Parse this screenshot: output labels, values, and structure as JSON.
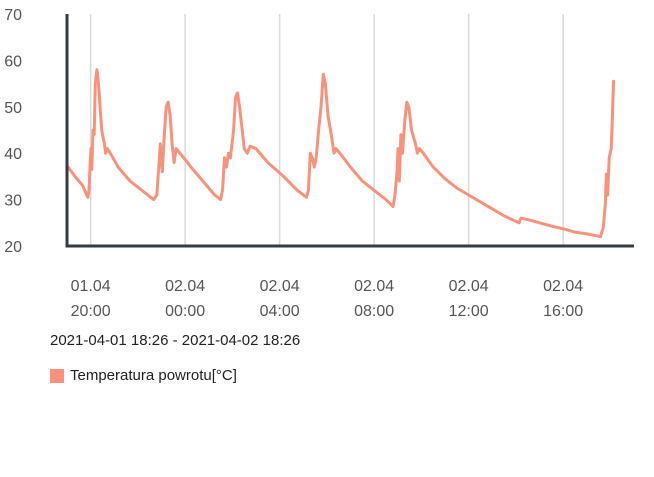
{
  "chart_data": {
    "type": "line",
    "title": "",
    "xlabel": "",
    "ylabel": "",
    "ylim": [
      20,
      70
    ],
    "y_ticks": [
      20,
      30,
      40,
      50,
      60,
      70
    ],
    "x_range": [
      "2021-04-01 19:00",
      "2021-04-02 19:00"
    ],
    "x_ticks": [
      {
        "time": "2021-04-01 20:00",
        "date": "01.04",
        "hour": "20:00"
      },
      {
        "time": "2021-04-02 00:00",
        "date": "02.04",
        "hour": "00:00"
      },
      {
        "time": "2021-04-02 04:00",
        "date": "02.04",
        "hour": "04:00"
      },
      {
        "time": "2021-04-02 08:00",
        "date": "02.04",
        "hour": "08:00"
      },
      {
        "time": "2021-04-02 12:00",
        "date": "02.04",
        "hour": "12:00"
      },
      {
        "time": "2021-04-02 16:00",
        "date": "02.04",
        "hour": "16:00"
      }
    ],
    "grid": "vertical",
    "legend_position": "bottom-left",
    "date_range_label": "2021-04-01 18:26 - 2021-04-02 18:26",
    "series": [
      {
        "name": "Temperatura powrotu[°C]",
        "color": "#f9927c",
        "points": [
          [
            "2021-04-01 19:03",
            37.0
          ],
          [
            "2021-04-01 19:20",
            35.0
          ],
          [
            "2021-04-01 19:40",
            33.0
          ],
          [
            "2021-04-01 19:50",
            31.0
          ],
          [
            "2021-04-01 19:53",
            30.5
          ],
          [
            "2021-04-01 19:56",
            32.0
          ],
          [
            "2021-04-01 19:59",
            38.0
          ],
          [
            "2021-04-01 20:01",
            41.0
          ],
          [
            "2021-04-01 20:03",
            36.5
          ],
          [
            "2021-04-01 20:06",
            45.0
          ],
          [
            "2021-04-01 20:09",
            44.0
          ],
          [
            "2021-04-01 20:12",
            55.0
          ],
          [
            "2021-04-01 20:16",
            58.0
          ],
          [
            "2021-04-01 20:20",
            55.0
          ],
          [
            "2021-04-01 20:28",
            45.0
          ],
          [
            "2021-04-01 20:35",
            42.0
          ],
          [
            "2021-04-01 20:38",
            40.0
          ],
          [
            "2021-04-01 20:42",
            41.0
          ],
          [
            "2021-04-01 20:50",
            40.0
          ],
          [
            "2021-04-01 21:10",
            37.0
          ],
          [
            "2021-04-01 21:40",
            34.0
          ],
          [
            "2021-04-01 22:10",
            32.0
          ],
          [
            "2021-04-01 22:40",
            30.0
          ],
          [
            "2021-04-01 22:48",
            31.0
          ],
          [
            "2021-04-01 22:54",
            38.0
          ],
          [
            "2021-04-01 22:57",
            42.0
          ],
          [
            "2021-04-01 23:02",
            36.0
          ],
          [
            "2021-04-01 23:07",
            44.0
          ],
          [
            "2021-04-01 23:12",
            50.0
          ],
          [
            "2021-04-01 23:17",
            51.0
          ],
          [
            "2021-04-01 23:22",
            48.0
          ],
          [
            "2021-04-01 23:27",
            42.0
          ],
          [
            "2021-04-01 23:32",
            38.0
          ],
          [
            "2021-04-01 23:37",
            41.0
          ],
          [
            "2021-04-01 23:47",
            40.0
          ],
          [
            "2021-04-02 00:15",
            37.0
          ],
          [
            "2021-04-02 00:45",
            34.0
          ],
          [
            "2021-04-02 01:15",
            31.0
          ],
          [
            "2021-04-02 01:30",
            30.0
          ],
          [
            "2021-04-02 01:35",
            32.0
          ],
          [
            "2021-04-02 01:40",
            39.0
          ],
          [
            "2021-04-02 01:45",
            37.0
          ],
          [
            "2021-04-02 01:50",
            40.0
          ],
          [
            "2021-04-02 01:55",
            39.0
          ],
          [
            "2021-04-02 02:03",
            45.0
          ],
          [
            "2021-04-02 02:08",
            52.0
          ],
          [
            "2021-04-02 02:13",
            53.0
          ],
          [
            "2021-04-02 02:18",
            50.0
          ],
          [
            "2021-04-02 02:25",
            45.0
          ],
          [
            "2021-04-02 02:30",
            41.0
          ],
          [
            "2021-04-02 02:38",
            40.0
          ],
          [
            "2021-04-02 02:45",
            41.5
          ],
          [
            "2021-04-02 03:00",
            41.0
          ],
          [
            "2021-04-02 03:30",
            38.0
          ],
          [
            "2021-04-02 04:10",
            35.0
          ],
          [
            "2021-04-02 04:45",
            32.0
          ],
          [
            "2021-04-02 05:08",
            30.5
          ],
          [
            "2021-04-02 05:13",
            32.0
          ],
          [
            "2021-04-02 05:18",
            40.0
          ],
          [
            "2021-04-02 05:23",
            39.0
          ],
          [
            "2021-04-02 05:28",
            37.0
          ],
          [
            "2021-04-02 05:33",
            39.0
          ],
          [
            "2021-04-02 05:38",
            44.0
          ],
          [
            "2021-04-02 05:45",
            50.0
          ],
          [
            "2021-04-02 05:51",
            57.0
          ],
          [
            "2021-04-02 05:56",
            55.0
          ],
          [
            "2021-04-02 06:03",
            48.0
          ],
          [
            "2021-04-02 06:13",
            43.0
          ],
          [
            "2021-04-02 06:18",
            40.0
          ],
          [
            "2021-04-02 06:23",
            41.0
          ],
          [
            "2021-04-02 06:33",
            40.0
          ],
          [
            "2021-04-02 07:00",
            37.0
          ],
          [
            "2021-04-02 07:30",
            34.0
          ],
          [
            "2021-04-02 08:00",
            32.0
          ],
          [
            "2021-04-02 08:30",
            30.0
          ],
          [
            "2021-04-02 08:48",
            28.5
          ],
          [
            "2021-04-02 08:53",
            31.0
          ],
          [
            "2021-04-02 08:58",
            36.0
          ],
          [
            "2021-04-02 09:01",
            41.0
          ],
          [
            "2021-04-02 09:04",
            34.0
          ],
          [
            "2021-04-02 09:08",
            44.0
          ],
          [
            "2021-04-02 09:12",
            40.0
          ],
          [
            "2021-04-02 09:18",
            47.0
          ],
          [
            "2021-04-02 09:23",
            51.0
          ],
          [
            "2021-04-02 09:28",
            50.0
          ],
          [
            "2021-04-02 09:35",
            45.0
          ],
          [
            "2021-04-02 09:45",
            42.0
          ],
          [
            "2021-04-02 09:50",
            40.0
          ],
          [
            "2021-04-02 09:55",
            41.0
          ],
          [
            "2021-04-02 10:05",
            40.0
          ],
          [
            "2021-04-02 10:30",
            37.0
          ],
          [
            "2021-04-02 11:00",
            34.5
          ],
          [
            "2021-04-02 11:30",
            32.5
          ],
          [
            "2021-04-02 12:00",
            31.0
          ],
          [
            "2021-04-02 12:30",
            29.5
          ],
          [
            "2021-04-02 13:00",
            28.0
          ],
          [
            "2021-04-02 13:30",
            26.5
          ],
          [
            "2021-04-02 14:00",
            25.3
          ],
          [
            "2021-04-02 14:08",
            25.0
          ],
          [
            "2021-04-02 14:13",
            26.0
          ],
          [
            "2021-04-02 14:30",
            25.7
          ],
          [
            "2021-04-02 15:00",
            25.0
          ],
          [
            "2021-04-02 15:30",
            24.3
          ],
          [
            "2021-04-02 16:00",
            23.7
          ],
          [
            "2021-04-02 16:30",
            23.0
          ],
          [
            "2021-04-02 17:00",
            22.6
          ],
          [
            "2021-04-02 17:25",
            22.2
          ],
          [
            "2021-04-02 17:35",
            22.0
          ],
          [
            "2021-04-02 17:42",
            24.0
          ],
          [
            "2021-04-02 17:47",
            29.0
          ],
          [
            "2021-04-02 17:50",
            35.5
          ],
          [
            "2021-04-02 17:53",
            31.0
          ],
          [
            "2021-04-02 17:57",
            39.0
          ],
          [
            "2021-04-02 18:02",
            41.0
          ],
          [
            "2021-04-02 18:05",
            47.0
          ],
          [
            "2021-04-02 18:08",
            55.5
          ]
        ]
      }
    ]
  }
}
